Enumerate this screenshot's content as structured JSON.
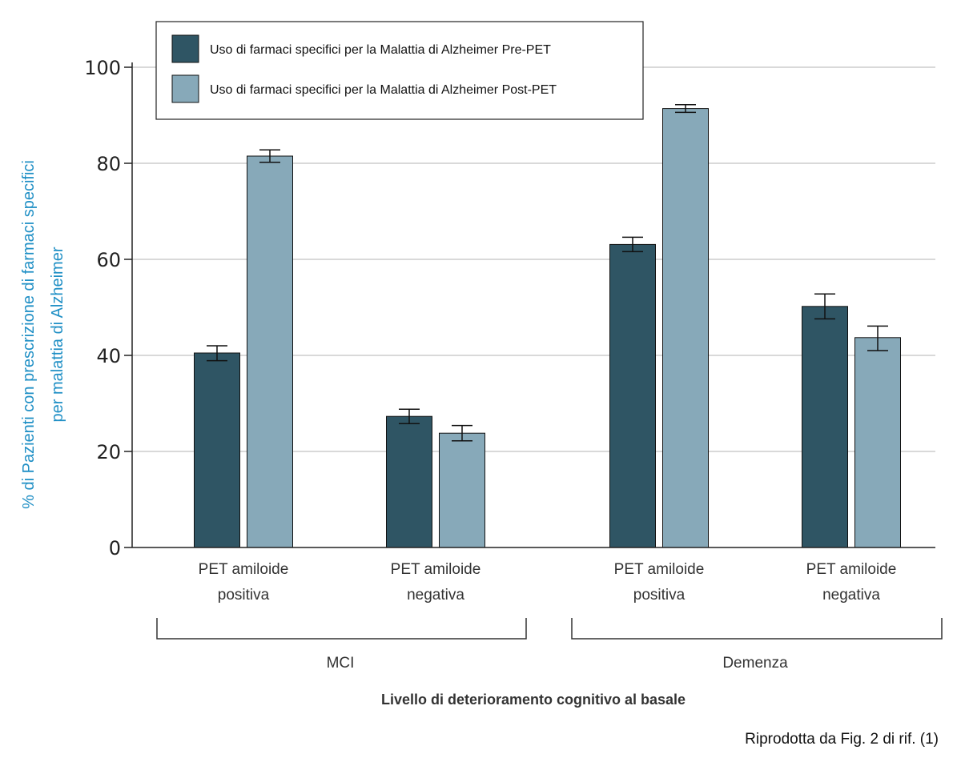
{
  "chart_data": {
    "type": "bar",
    "ylabel_lines": [
      "% di Pazienti con prescrizione di farmaci specifici",
      "per malattia di Alzheimer"
    ],
    "xlabel": "Livello di deterioramento cognitivo al basale",
    "ylim": [
      0,
      100
    ],
    "yticks": [
      0,
      20,
      40,
      60,
      80,
      100
    ],
    "ytick_labels": [
      "0",
      "20",
      "40",
      "60",
      "80",
      "100"
    ],
    "grid": true,
    "legend_position": "top-left",
    "categories": [
      {
        "line1": "PET amiloide",
        "line2": "positiva"
      },
      {
        "line1": "PET amiloide",
        "line2": "negativa"
      },
      {
        "line1": "PET amiloide",
        "line2": "positiva"
      },
      {
        "line1": "PET amiloide",
        "line2": "negativa"
      }
    ],
    "groups": [
      "MCI",
      "Demenza"
    ],
    "series": [
      {
        "name": "Uso di farmaci specifici per la Malattia di Alzheimer Pre-PET",
        "color": "#2f5564",
        "values": [
          40.5,
          27.3,
          63.1,
          50.2
        ],
        "err_low": [
          38.9,
          25.8,
          61.6,
          47.6
        ],
        "err_high": [
          42.0,
          28.8,
          64.6,
          52.8
        ]
      },
      {
        "name": "Uso di farmaci specifici per la Malattia di Alzheimer Post-PET",
        "color": "#87a9b9",
        "values": [
          81.5,
          23.8,
          91.4,
          43.7
        ],
        "err_low": [
          80.2,
          22.2,
          90.6,
          41.0
        ],
        "err_high": [
          82.8,
          25.4,
          92.2,
          46.1
        ]
      }
    ]
  },
  "source_note": "Riprodotta da Fig. 2 di rif. (1)"
}
